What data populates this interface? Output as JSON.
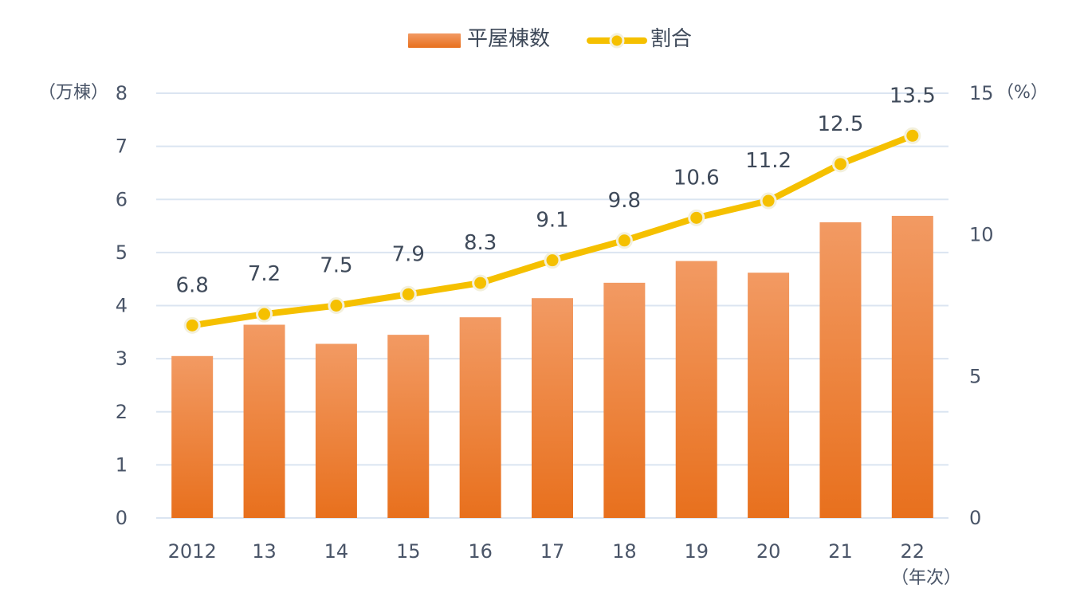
{
  "legend": {
    "bar_label": "平屋棟数",
    "line_label": "割合"
  },
  "axes": {
    "left_unit": "（万棟）",
    "right_unit": "（%）",
    "x_unit": "（年次）"
  },
  "colors": {
    "bar_top": "#f29a63",
    "bar_bottom": "#e8701d",
    "line": "#f5c000",
    "marker_fill": "#f5c000",
    "marker_stroke": "#f3f0dc",
    "grid": "#dbe5f1",
    "text": "#4a5568"
  },
  "chart_data": {
    "type": "bar",
    "categories": [
      "2012",
      "13",
      "14",
      "15",
      "16",
      "17",
      "18",
      "19",
      "20",
      "21",
      "22"
    ],
    "series": [
      {
        "name": "平屋棟数",
        "type": "bar",
        "axis": "left",
        "values": [
          3.05,
          3.64,
          3.28,
          3.45,
          3.78,
          4.14,
          4.43,
          4.84,
          4.62,
          5.57,
          5.69
        ]
      },
      {
        "name": "割合",
        "type": "line",
        "axis": "right",
        "values": [
          6.8,
          7.2,
          7.5,
          7.9,
          8.3,
          9.1,
          9.8,
          10.6,
          11.2,
          12.5,
          13.5
        ],
        "data_labels": [
          "6.8",
          "7.2",
          "7.5",
          "7.9",
          "8.3",
          "9.1",
          "9.8",
          "10.6",
          "11.2",
          "12.5",
          "13.5"
        ]
      }
    ],
    "left_axis": {
      "range": [
        0,
        8
      ],
      "ticks": [
        "0",
        "1",
        "2",
        "3",
        "4",
        "5",
        "6",
        "7",
        "8"
      ]
    },
    "right_axis": {
      "range": [
        0,
        15
      ],
      "ticks": [
        "0",
        "5",
        "10",
        "15"
      ]
    },
    "grid": true,
    "legend_position": "top"
  }
}
